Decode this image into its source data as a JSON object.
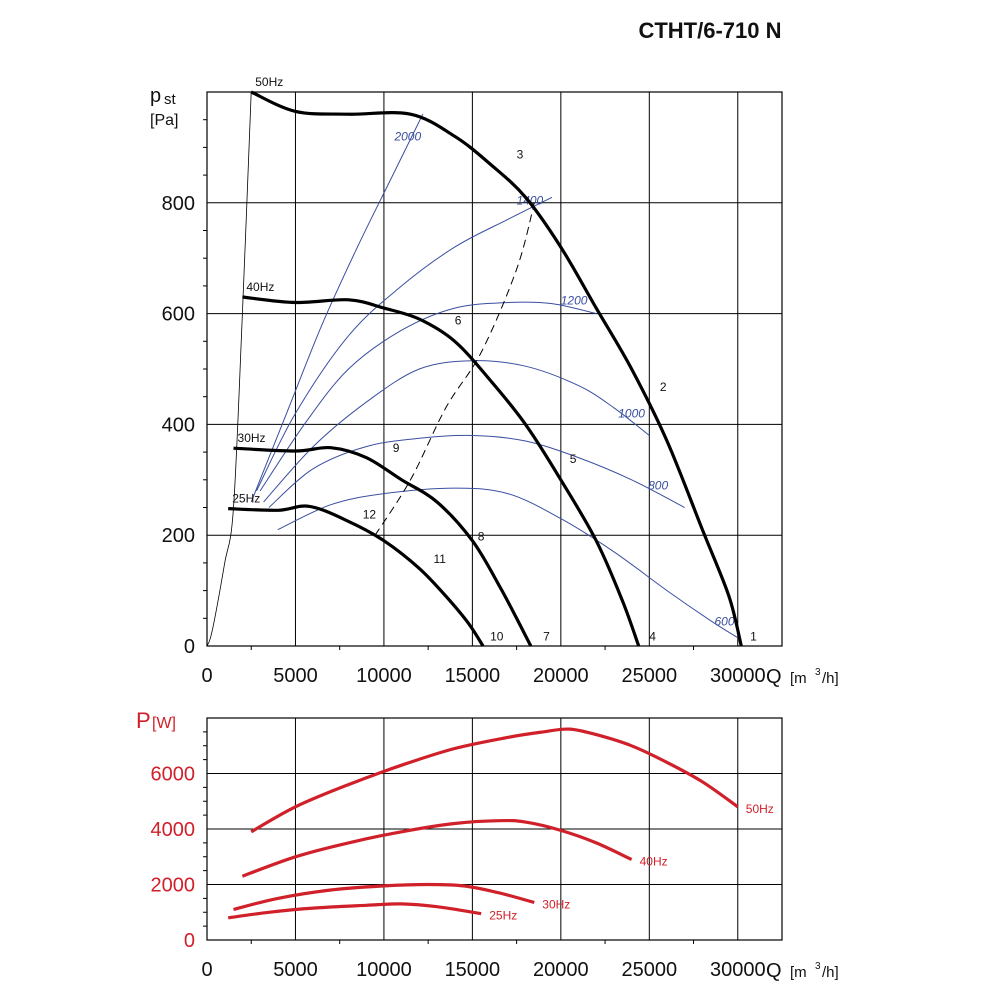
{
  "title": "CTHT/6-710 N",
  "chart_data": [
    {
      "type": "line",
      "ylabel_main": "p",
      "ylabel_sub": "st",
      "ylabel_unit": "[Pa]",
      "xlabel": "Q",
      "xlabel_unit": "[m",
      "xlabel_sup": "3",
      "xlabel_end": "/h]",
      "xlim": [
        0,
        32500
      ],
      "ylim": [
        0,
        1000
      ],
      "xticks": [
        0,
        5000,
        10000,
        15000,
        20000,
        25000,
        30000
      ],
      "yticks": [
        0,
        200,
        400,
        600,
        800
      ],
      "grid": true,
      "series": [
        {
          "name": "50Hz",
          "points": [
            [
              2500,
              1000
            ],
            [
              5000,
              965
            ],
            [
              8000,
              960
            ],
            [
              11500,
              960
            ],
            [
              14000,
              920
            ],
            [
              16000,
              870
            ],
            [
              18000,
              810
            ],
            [
              20000,
              720
            ],
            [
              22000,
              610
            ],
            [
              24000,
              500
            ],
            [
              26000,
              370
            ],
            [
              28000,
              210
            ],
            [
              29500,
              90
            ],
            [
              30200,
              0
            ]
          ]
        },
        {
          "name": "40Hz",
          "points": [
            [
              2000,
              630
            ],
            [
              5000,
              620
            ],
            [
              8000,
              625
            ],
            [
              10000,
              610
            ],
            [
              12000,
              590
            ],
            [
              14000,
              550
            ],
            [
              16000,
              480
            ],
            [
              18000,
              400
            ],
            [
              20000,
              300
            ],
            [
              22000,
              190
            ],
            [
              23500,
              80
            ],
            [
              24400,
              0
            ]
          ]
        },
        {
          "name": "30Hz",
          "points": [
            [
              1500,
              357
            ],
            [
              5000,
              352
            ],
            [
              7000,
              358
            ],
            [
              9000,
              340
            ],
            [
              11000,
              300
            ],
            [
              13000,
              260
            ],
            [
              15000,
              190
            ],
            [
              16500,
              110
            ],
            [
              17500,
              50
            ],
            [
              18300,
              0
            ]
          ]
        },
        {
          "name": "25Hz",
          "points": [
            [
              1200,
              248
            ],
            [
              4000,
              245
            ],
            [
              5800,
              252
            ],
            [
              8000,
              225
            ],
            [
              10000,
              190
            ],
            [
              12000,
              140
            ],
            [
              13500,
              90
            ],
            [
              14800,
              40
            ],
            [
              15600,
              0
            ]
          ]
        }
      ],
      "system_curve": {
        "points": [
          [
            0,
            0
          ],
          [
            200,
            15
          ],
          [
            500,
            60
          ],
          [
            1000,
            150
          ],
          [
            1500,
            250
          ],
          [
            2000,
            600
          ],
          [
            2500,
            1000
          ]
        ]
      },
      "efficiency_line": {
        "points": [
          [
            9500,
            200
          ],
          [
            11500,
            300
          ],
          [
            13500,
            430
          ],
          [
            15500,
            530
          ],
          [
            17500,
            680
          ],
          [
            18500,
            800
          ]
        ]
      },
      "speed_lines": [
        {
          "label": "2000",
          "points": [
            [
              2500,
              260
            ],
            [
              4500,
              420
            ],
            [
              6500,
              580
            ],
            [
              8500,
              720
            ],
            [
              10500,
              850
            ],
            [
              12200,
              960
            ]
          ]
        },
        {
          "label": "1400",
          "points": [
            [
              2800,
              280
            ],
            [
              5000,
              420
            ],
            [
              8000,
              560
            ],
            [
              11000,
              650
            ],
            [
              14000,
              720
            ],
            [
              17000,
              770
            ],
            [
              19500,
              810
            ]
          ]
        },
        {
          "label": "1200",
          "points": [
            [
              3000,
              280
            ],
            [
              5500,
              400
            ],
            [
              8000,
              500
            ],
            [
              11000,
              570
            ],
            [
              14000,
              610
            ],
            [
              17000,
              620
            ],
            [
              19500,
              618
            ],
            [
              22000,
              600
            ]
          ]
        },
        {
          "label": "1000",
          "points": [
            [
              3200,
              260
            ],
            [
              6000,
              360
            ],
            [
              9000,
              440
            ],
            [
              12000,
              500
            ],
            [
              15000,
              515
            ],
            [
              18000,
              505
            ],
            [
              21000,
              470
            ],
            [
              23000,
              430
            ],
            [
              25000,
              380
            ]
          ]
        },
        {
          "label": "800",
          "points": [
            [
              3500,
              250
            ],
            [
              6000,
              320
            ],
            [
              9000,
              360
            ],
            [
              12000,
              375
            ],
            [
              15000,
              380
            ],
            [
              18000,
              370
            ],
            [
              21000,
              340
            ],
            [
              24000,
              300
            ],
            [
              27000,
              250
            ]
          ]
        },
        {
          "label": "600",
          "points": [
            [
              4000,
              210
            ],
            [
              7000,
              255
            ],
            [
              10000,
              275
            ],
            [
              14000,
              285
            ],
            [
              17000,
              275
            ],
            [
              20000,
              230
            ],
            [
              23000,
              170
            ],
            [
              26000,
              100
            ],
            [
              28500,
              45
            ],
            [
              30000,
              15
            ]
          ]
        }
      ],
      "point_labels": [
        {
          "text": "1",
          "x": 30700,
          "y": 10
        },
        {
          "text": "2",
          "x": 25600,
          "y": 460
        },
        {
          "text": "3",
          "x": 17500,
          "y": 880
        },
        {
          "text": "4",
          "x": 25000,
          "y": 10
        },
        {
          "text": "5",
          "x": 20500,
          "y": 330
        },
        {
          "text": "6",
          "x": 14000,
          "y": 580
        },
        {
          "text": "7",
          "x": 19000,
          "y": 10
        },
        {
          "text": "8",
          "x": 15300,
          "y": 190
        },
        {
          "text": "9",
          "x": 10500,
          "y": 350
        },
        {
          "text": "10",
          "x": 16000,
          "y": 10
        },
        {
          "text": "11",
          "x": 12800,
          "y": 150
        },
        {
          "text": "12",
          "x": 8800,
          "y": 230
        }
      ]
    },
    {
      "type": "line",
      "ylabel_main": "P",
      "ylabel_unit": "[W]",
      "xlabel": "Q",
      "xlabel_unit": "[m",
      "xlabel_sup": "3",
      "xlabel_end": "/h]",
      "xlim": [
        0,
        32500
      ],
      "ylim": [
        0,
        8000
      ],
      "xticks": [
        0,
        5000,
        10000,
        15000,
        20000,
        25000,
        30000
      ],
      "yticks": [
        0,
        2000,
        4000,
        6000
      ],
      "ytick_labels": [
        "0",
        "2000",
        "4000",
        "6000"
      ],
      "grid": true,
      "series": [
        {
          "name": "50Hz",
          "points": [
            [
              2500,
              3900
            ],
            [
              5000,
              4800
            ],
            [
              8000,
              5600
            ],
            [
              11000,
              6300
            ],
            [
              14000,
              6900
            ],
            [
              17000,
              7300
            ],
            [
              19000,
              7500
            ],
            [
              20500,
              7600
            ],
            [
              22000,
              7400
            ],
            [
              24000,
              7000
            ],
            [
              26000,
              6400
            ],
            [
              28000,
              5700
            ],
            [
              30000,
              4800
            ]
          ]
        },
        {
          "name": "40Hz",
          "points": [
            [
              2000,
              2300
            ],
            [
              5000,
              3000
            ],
            [
              8000,
              3500
            ],
            [
              11000,
              3900
            ],
            [
              14000,
              4200
            ],
            [
              16500,
              4300
            ],
            [
              18000,
              4250
            ],
            [
              20000,
              3950
            ],
            [
              22000,
              3500
            ],
            [
              24000,
              2900
            ]
          ]
        },
        {
          "name": "30Hz",
          "points": [
            [
              1500,
              1100
            ],
            [
              4000,
              1500
            ],
            [
              7000,
              1800
            ],
            [
              10000,
              1950
            ],
            [
              12500,
              2000
            ],
            [
              14500,
              1950
            ],
            [
              16500,
              1700
            ],
            [
              18500,
              1350
            ]
          ]
        },
        {
          "name": "25Hz",
          "points": [
            [
              1200,
              800
            ],
            [
              3500,
              1000
            ],
            [
              6000,
              1150
            ],
            [
              9000,
              1250
            ],
            [
              11000,
              1300
            ],
            [
              13000,
              1200
            ],
            [
              15500,
              950
            ]
          ]
        }
      ]
    }
  ]
}
